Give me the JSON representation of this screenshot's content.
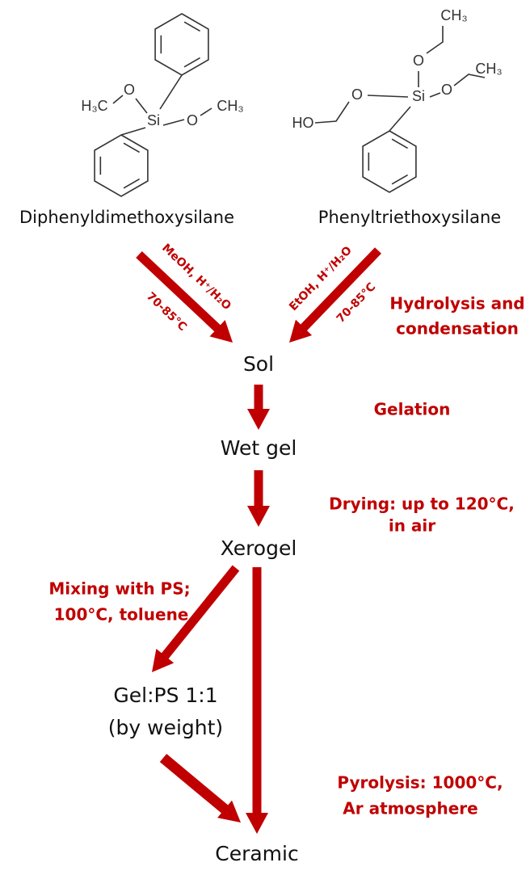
{
  "precursors": [
    {
      "name": "Diphenyldimethoxysilane",
      "atoms": [
        "H₃C",
        "O",
        "Si",
        "O",
        "CH₃"
      ]
    },
    {
      "name": "Phenyltriethoxysilane",
      "atoms": [
        "CH₃",
        "O",
        "CH₃",
        "HO",
        "O",
        "Si",
        "O"
      ]
    }
  ],
  "hydrolysis_conditions": [
    {
      "reagents": "MeOH, H⁺/H₂O",
      "temperature": "70-85°C"
    },
    {
      "reagents": "EtOH, H⁺/H₂O",
      "temperature": "70-85°C"
    }
  ],
  "steps": {
    "sol": "Sol",
    "wet_gel": "Wet gel",
    "xerogel": "Xerogel",
    "blend": [
      "Gel:PS 1:1",
      "(by weight)"
    ],
    "ceramic": "Ceramic"
  },
  "process_labels": {
    "hydrolysis": [
      "Hydrolysis and",
      "condensation"
    ],
    "gelation": "Gelation",
    "drying": [
      "Drying: up to 120°C,",
      "in air"
    ],
    "mixing": [
      "Mixing with PS;",
      "100°C, toluene"
    ],
    "pyrolysis": [
      "Pyrolysis: 1000°C,",
      "Ar atmosphere"
    ]
  }
}
